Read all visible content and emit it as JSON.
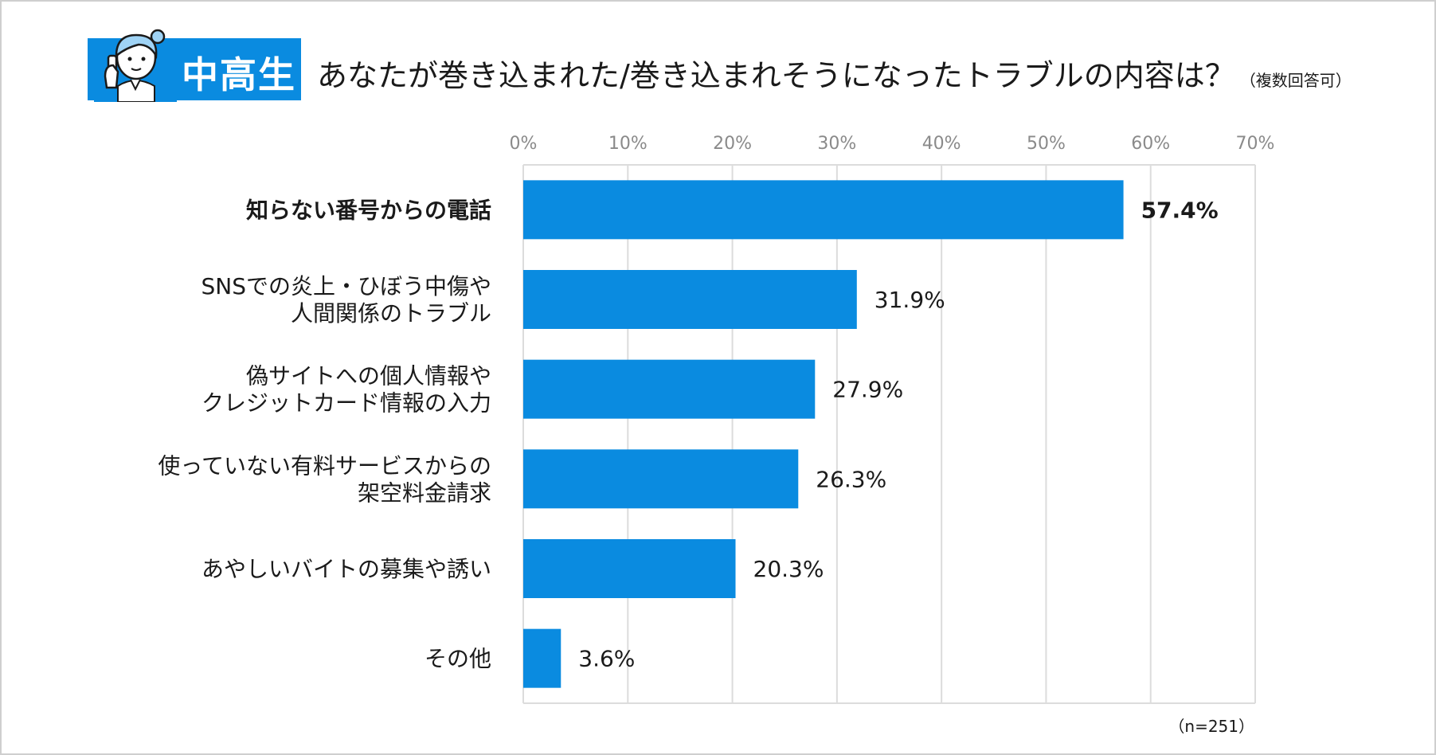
{
  "header": {
    "badge": "中高生",
    "title": "あなたが巻き込まれた/巻き込まれそうになったトラブルの内容は？",
    "note": "（複数回答可）"
  },
  "colors": {
    "bar": "#0a8be0",
    "grid": "#dcdcdc",
    "badge": "#0a8be0"
  },
  "chart_data": {
    "type": "bar",
    "orientation": "horizontal",
    "title": "あなたが巻き込まれた/巻き込まれそうになったトラブルの内容は？",
    "xlim": [
      0,
      70
    ],
    "ticks": [
      0,
      10,
      20,
      30,
      40,
      50,
      60,
      70
    ],
    "tick_labels": [
      "0%",
      "10%",
      "20%",
      "30%",
      "40%",
      "50%",
      "60%",
      "70%"
    ],
    "categories": [
      [
        "知らない番号からの電話"
      ],
      [
        "SNSでの炎上・ひぼう中傷や",
        "人間関係のトラブル"
      ],
      [
        "偽サイトへの個人情報や",
        "クレジットカード情報の入力"
      ],
      [
        "使っていない有料サービスからの",
        "架空料金請求"
      ],
      [
        "あやしいバイトの募集や誘い"
      ],
      [
        "その他"
      ]
    ],
    "values": [
      57.4,
      31.9,
      27.9,
      26.3,
      20.3,
      3.6
    ],
    "value_labels": [
      "57.4%",
      "31.9%",
      "27.9%",
      "26.3%",
      "20.3%",
      "3.6%"
    ],
    "highlight_index": 0,
    "grid": true,
    "xlabel": "",
    "ylabel": ""
  },
  "footer": {
    "sample_size": "（n=251）"
  }
}
